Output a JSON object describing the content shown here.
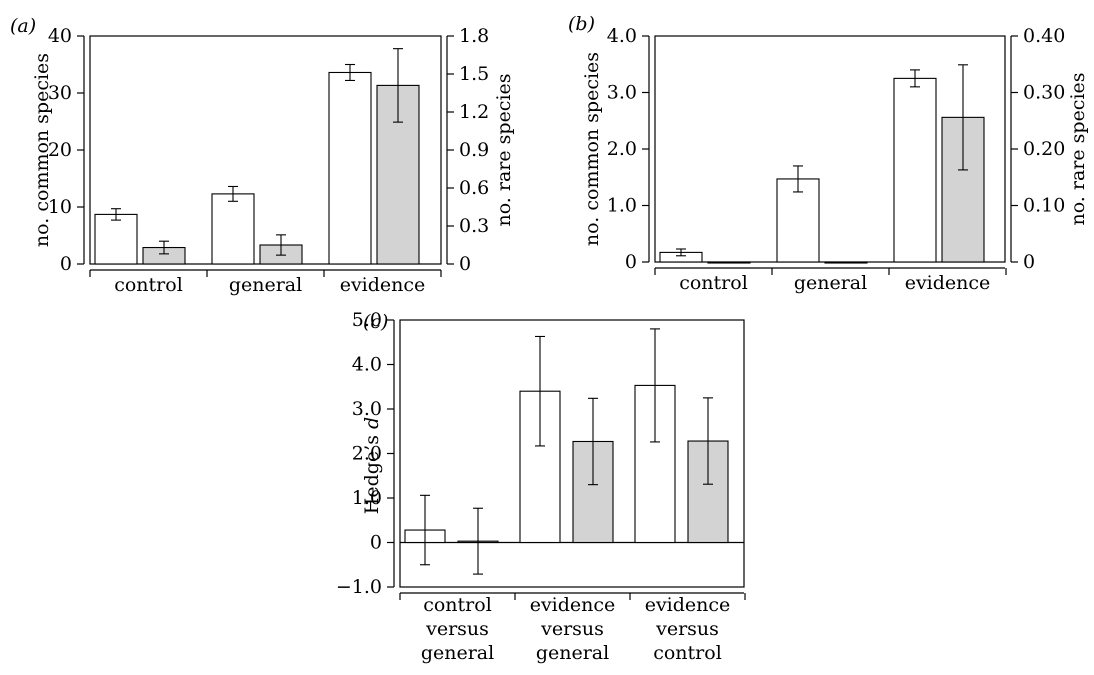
{
  "chart_data": [
    {
      "panel": "(a)",
      "type": "bar",
      "categories": [
        "control",
        "general",
        "evidence"
      ],
      "ylabel_left": "no. common species",
      "ylabel_right": "no. rare species",
      "ylim_left": [
        0,
        40
      ],
      "yticks_left": [
        "0",
        "10",
        "20",
        "30",
        "40"
      ],
      "ylim_right": [
        0,
        1.8
      ],
      "yticks_right": [
        "0",
        "0.3",
        "0.6",
        "0.9",
        "1.2",
        "1.5",
        "1.8"
      ],
      "series": [
        {
          "axis": "left",
          "color": "#ffffff",
          "values": [
            8.7,
            12.3,
            33.6
          ],
          "errors": [
            1.0,
            1.3,
            1.4
          ]
        },
        {
          "axis": "right",
          "color": "#d3d3d3",
          "values": [
            0.13,
            0.15,
            1.41
          ],
          "errors": [
            0.05,
            0.08,
            0.29
          ]
        }
      ]
    },
    {
      "panel": "(b)",
      "type": "bar",
      "categories": [
        "control",
        "general",
        "evidence"
      ],
      "ylabel_left": "no. common species",
      "ylabel_right": "no. rare species",
      "ylim_left": [
        0,
        4.0
      ],
      "yticks_left": [
        "0",
        "1.0",
        "2.0",
        "3.0",
        "4.0"
      ],
      "ylim_right": [
        0,
        0.4
      ],
      "yticks_right": [
        "0",
        "0.10",
        "0.20",
        "0.30",
        "0.40"
      ],
      "series": [
        {
          "axis": "left",
          "color": "#ffffff",
          "values": [
            0.17,
            1.47,
            3.25
          ],
          "errors": [
            0.06,
            0.23,
            0.15
          ]
        },
        {
          "axis": "right",
          "color": "#d3d3d3",
          "values": [
            0,
            0,
            0.256
          ],
          "errors": [
            0,
            0,
            0.093
          ]
        }
      ]
    },
    {
      "panel": "(c)",
      "type": "bar",
      "categories": [
        [
          "control",
          "versus",
          "general"
        ],
        [
          "evidence",
          "versus",
          "general"
        ],
        [
          "evidence",
          "versus",
          "control"
        ]
      ],
      "ylabel_left": "Hedge’s d",
      "ylim_left": [
        -1.0,
        5.0
      ],
      "yticks_left": [
        "−1.0",
        "0",
        "1.0",
        "2.0",
        "3.0",
        "4.0",
        "5.0"
      ],
      "series": [
        {
          "axis": "left",
          "color": "#ffffff",
          "values": [
            0.28,
            3.4,
            3.53
          ],
          "errors": [
            0.78,
            1.23,
            1.27
          ]
        },
        {
          "axis": "left",
          "color": "#d3d3d3",
          "values": [
            0.03,
            2.27,
            2.28
          ],
          "errors": [
            0.74,
            0.97,
            0.97
          ]
        }
      ]
    }
  ]
}
